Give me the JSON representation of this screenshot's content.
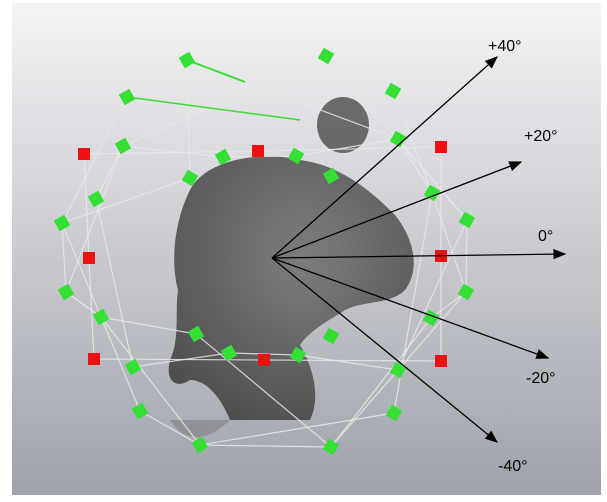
{
  "angle_labels": [
    "+40°",
    "+20°",
    "0°",
    "-20°",
    "-40°"
  ]
}
